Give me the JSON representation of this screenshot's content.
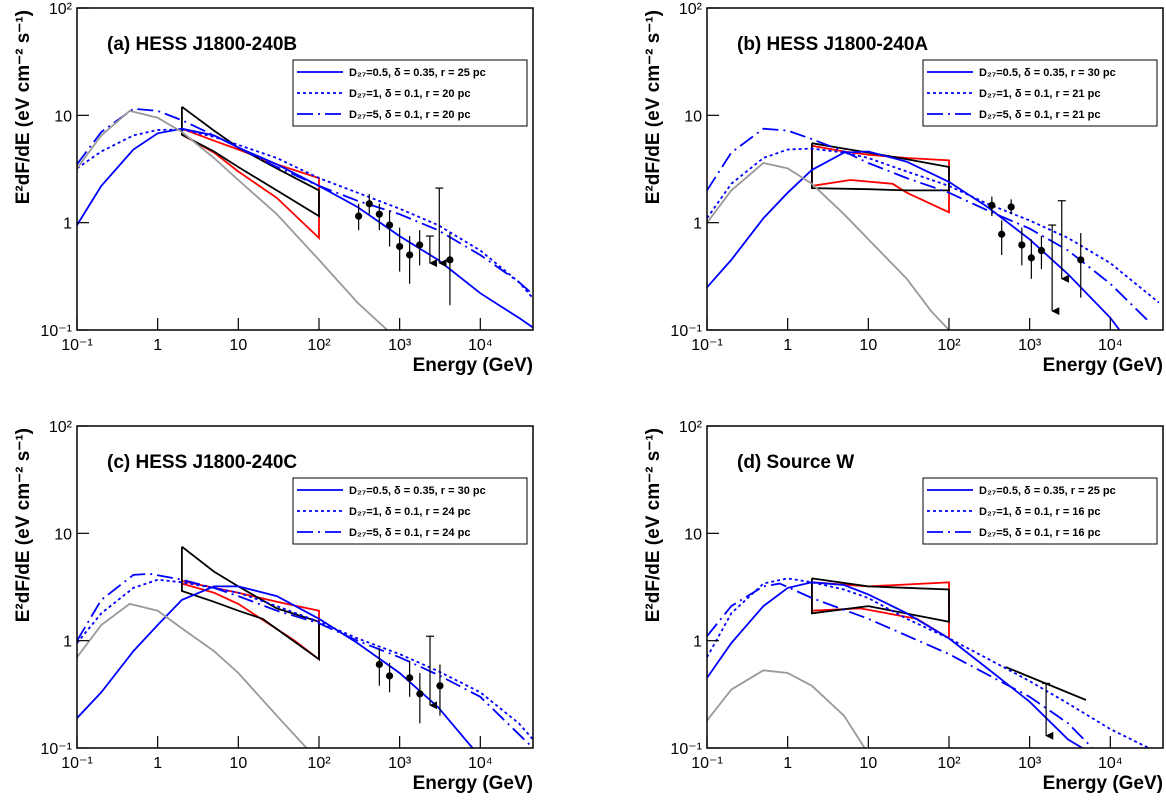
{
  "chart_data": [
    {
      "type": "line",
      "title": "(a) HESS J1800-240B",
      "xlabel": "Energy (GeV)",
      "ylabel": "E²dF/dE (eV cm⁻² s⁻¹)",
      "log_x": true,
      "log_y": true,
      "xlim": [
        0.1,
        45000
      ],
      "ylim": [
        0.1,
        100
      ],
      "xticks": [
        {
          "value": 0.1,
          "label": "10⁻¹"
        },
        1,
        10,
        {
          "value": 100,
          "label": "10²"
        },
        {
          "value": 1000,
          "label": "10³"
        },
        {
          "value": 10000,
          "label": "10⁴"
        }
      ],
      "yticks": [
        {
          "value": 0.1,
          "label": "10⁻¹"
        },
        1,
        10,
        {
          "value": 100,
          "label": "10²"
        }
      ],
      "legend": "upper right",
      "series": [
        {
          "name": "D₂₇=0.5, δ = 0.35, r = 25 pc",
          "color": "#0000ff",
          "style": "solid",
          "x": [
            0.1,
            0.2,
            0.5,
            1,
            2,
            5,
            10,
            30,
            100,
            300,
            1000,
            3000,
            10000,
            30000,
            50000
          ],
          "values": [
            0.95,
            2.2,
            4.8,
            6.8,
            7.5,
            6.5,
            5.0,
            3.5,
            2.2,
            1.4,
            0.75,
            0.45,
            0.22,
            0.13,
            0.1
          ]
        },
        {
          "name": "D₂₇=1, δ = 0.1, r = 20 pc",
          "color": "#0000ff",
          "style": "dotted",
          "x": [
            0.1,
            0.2,
            0.5,
            1,
            2,
            5,
            10,
            30,
            100,
            300,
            1000,
            3000,
            10000,
            30000,
            50000
          ],
          "values": [
            3.2,
            4.6,
            6.5,
            7.3,
            7.4,
            6.3,
            5.3,
            4.0,
            2.6,
            1.9,
            1.35,
            0.95,
            0.55,
            0.28,
            0.18
          ]
        },
        {
          "name": "D₂₇=5, δ = 0.1, r = 20 pc",
          "color": "#0000ff",
          "style": "dashdot",
          "x": [
            0.1,
            0.2,
            0.5,
            1,
            2,
            5,
            10,
            30,
            100,
            300,
            1000,
            3000,
            10000,
            30000,
            50000
          ],
          "values": [
            3.5,
            7,
            11.5,
            11,
            9,
            6.5,
            5.0,
            3.3,
            2.2,
            1.6,
            1.2,
            0.85,
            0.5,
            0.28,
            0.2
          ]
        },
        {
          "color": "#999999",
          "style": "solid",
          "x": [
            0.1,
            0.2,
            0.45,
            1,
            2,
            5,
            10,
            30,
            100,
            300,
            700
          ],
          "values": [
            3.2,
            6.5,
            11,
            9.5,
            7,
            4,
            2.5,
            1.2,
            0.45,
            0.18,
            0.1
          ]
        }
      ],
      "bowties": [
        {
          "color": "#ff0000",
          "x": [
            2,
            5,
            10,
            30,
            100,
            100,
            30,
            10,
            5,
            2,
            2
          ],
          "values": [
            7.5,
            5.8,
            4.8,
            3.5,
            2.6,
            0.72,
            1.7,
            3.0,
            4.5,
            6.6,
            7.5
          ]
        },
        {
          "color": "#000000",
          "x": [
            2,
            5,
            10,
            30,
            100,
            100,
            30,
            10,
            5,
            2,
            2
          ],
          "values": [
            12,
            7.2,
            5,
            3.2,
            2.0,
            1.15,
            2.0,
            3.3,
            4.6,
            6.6,
            12
          ]
        }
      ],
      "points": {
        "color": "#000000",
        "x": [
          310,
          420,
          560,
          750,
          1000,
          1330,
          1770,
          4200
        ],
        "values": [
          1.15,
          1.5,
          1.2,
          0.95,
          0.6,
          0.5,
          0.62,
          0.45
        ],
        "low": [
          0.85,
          1.2,
          0.85,
          0.6,
          0.35,
          0.27,
          0.4,
          0.17
        ],
        "high": [
          1.5,
          1.85,
          1.5,
          1.3,
          0.9,
          0.75,
          0.85,
          0.8
        ]
      },
      "upper_limits": {
        "x": [
          2370,
          3100
        ],
        "values": [
          0.75,
          2.1
        ],
        "tips": [
          0.42,
          0.42
        ]
      }
    },
    {
      "type": "line",
      "title": "(b) HESS J1800-240A",
      "xlabel": "Energy (GeV)",
      "ylabel": "E²dF/dE (eV cm⁻² s⁻¹)",
      "log_x": true,
      "log_y": true,
      "xlim": [
        0.1,
        45000
      ],
      "ylim": [
        0.1,
        100
      ],
      "xticks": [
        {
          "value": 0.1,
          "label": "10⁻¹"
        },
        1,
        10,
        {
          "value": 100,
          "label": "10²"
        },
        {
          "value": 1000,
          "label": "10³"
        },
        {
          "value": 10000,
          "label": "10⁴"
        }
      ],
      "yticks": [
        {
          "value": 0.1,
          "label": "10⁻¹"
        },
        1,
        10,
        {
          "value": 100,
          "label": "10²"
        }
      ],
      "legend": "upper right",
      "series": [
        {
          "name": "D₂₇=0.5, δ = 0.35, r = 30 pc",
          "color": "#0000ff",
          "style": "solid",
          "x": [
            0.1,
            0.2,
            0.5,
            1,
            2,
            5,
            10,
            30,
            100,
            300,
            1000,
            3000,
            10000,
            13000
          ],
          "values": [
            0.25,
            0.45,
            1.1,
            1.9,
            3.1,
            4.5,
            4.6,
            3.7,
            2.4,
            1.4,
            0.7,
            0.33,
            0.13,
            0.1
          ]
        },
        {
          "name": "D₂₇=1, δ = 0.1, r = 21 pc",
          "color": "#0000ff",
          "style": "dotted",
          "x": [
            0.1,
            0.2,
            0.5,
            1,
            2,
            5,
            10,
            30,
            100,
            300,
            1000,
            3000,
            10000,
            40000
          ],
          "values": [
            1.1,
            2.3,
            4.0,
            4.8,
            4.9,
            4.5,
            4.0,
            3.0,
            2.2,
            1.5,
            1.05,
            0.72,
            0.42,
            0.18
          ]
        },
        {
          "name": "D₂₇=5, δ = 0.1, r = 21 pc",
          "color": "#0000ff",
          "style": "dashdot",
          "x": [
            0.1,
            0.2,
            0.5,
            1,
            2,
            5,
            10,
            30,
            100,
            300,
            1000,
            3000,
            10000,
            30000
          ],
          "values": [
            2.0,
            4.5,
            7.5,
            7.2,
            6,
            4.6,
            3.6,
            2.6,
            1.9,
            1.3,
            0.88,
            0.55,
            0.27,
            0.12
          ]
        },
        {
          "color": "#999999",
          "style": "solid",
          "x": [
            0.1,
            0.2,
            0.5,
            1,
            2,
            5,
            10,
            30,
            60,
            100
          ],
          "values": [
            1.0,
            2.0,
            3.6,
            3.2,
            2.3,
            1.2,
            0.7,
            0.3,
            0.15,
            0.1
          ]
        }
      ],
      "bowties": [
        {
          "color": "#ff0000",
          "x": [
            2,
            5,
            10,
            30,
            100,
            100,
            30,
            20,
            6,
            2,
            2
          ],
          "values": [
            5.2,
            4.6,
            4.3,
            4.0,
            3.8,
            1.25,
            1.9,
            2.3,
            2.5,
            2.2,
            5.2
          ]
        },
        {
          "color": "#000000",
          "x": [
            2,
            5,
            10,
            30,
            100,
            100,
            30,
            10,
            2,
            2
          ],
          "values": [
            5.5,
            4.9,
            4.5,
            3.9,
            3.3,
            2.0,
            2.0,
            2.05,
            2.1,
            5.5
          ]
        }
      ],
      "points": {
        "color": "#000000",
        "x": [
          340,
          450,
          590,
          800,
          1050,
          1400,
          4300
        ],
        "values": [
          1.45,
          0.78,
          1.4,
          0.62,
          0.47,
          0.55,
          0.45
        ],
        "low": [
          1.15,
          0.5,
          1.2,
          0.4,
          0.3,
          0.37,
          0.2
        ],
        "high": [
          1.75,
          1.05,
          1.65,
          0.9,
          0.7,
          0.75,
          0.8
        ]
      },
      "upper_limits": {
        "x": [
          1900,
          2500
        ],
        "values": [
          0.95,
          1.6
        ],
        "tips": [
          0.15,
          0.3
        ]
      }
    },
    {
      "type": "line",
      "title": "(c) HESS J1800-240C",
      "xlabel": "Energy (GeV)",
      "ylabel": "E²dF/dE (eV cm⁻² s⁻¹)",
      "log_x": true,
      "log_y": true,
      "xlim": [
        0.1,
        45000
      ],
      "ylim": [
        0.1,
        100
      ],
      "xticks": [
        {
          "value": 0.1,
          "label": "10⁻¹"
        },
        1,
        10,
        {
          "value": 100,
          "label": "10²"
        },
        {
          "value": 1000,
          "label": "10³"
        },
        {
          "value": 10000,
          "label": "10⁴"
        }
      ],
      "yticks": [
        {
          "value": 0.1,
          "label": "10⁻¹"
        },
        1,
        10,
        {
          "value": 100,
          "label": "10²"
        }
      ],
      "legend": "upper right",
      "series": [
        {
          "name": "D₂₇=0.5, δ = 0.35, r = 30 pc",
          "color": "#0000ff",
          "style": "solid",
          "x": [
            0.1,
            0.2,
            0.5,
            1,
            2,
            5,
            10,
            30,
            100,
            300,
            1000,
            3000,
            8000
          ],
          "values": [
            0.19,
            0.33,
            0.8,
            1.4,
            2.4,
            3.2,
            3.2,
            2.6,
            1.6,
            0.95,
            0.5,
            0.24,
            0.1
          ]
        },
        {
          "name": "D₂₇=1, δ = 0.1, r = 24 pc",
          "color": "#0000ff",
          "style": "dotted",
          "x": [
            0.1,
            0.2,
            0.5,
            1,
            2,
            5,
            10,
            30,
            100,
            300,
            1000,
            3000,
            10000,
            30000,
            45000
          ],
          "values": [
            0.95,
            1.8,
            3.1,
            3.7,
            3.5,
            3.1,
            2.8,
            2.1,
            1.5,
            1.05,
            0.75,
            0.52,
            0.33,
            0.17,
            0.12
          ]
        },
        {
          "name": "D₂₇=5, δ = 0.1, r = 24 pc",
          "color": "#0000ff",
          "style": "dashdot",
          "x": [
            0.1,
            0.2,
            0.5,
            0.8,
            2,
            5,
            10,
            30,
            100,
            300,
            1000,
            3000,
            10000,
            45000
          ],
          "values": [
            1.0,
            2.4,
            4.1,
            4.2,
            3.7,
            3.1,
            2.6,
            1.9,
            1.45,
            1.0,
            0.7,
            0.48,
            0.3,
            0.1
          ]
        },
        {
          "color": "#999999",
          "style": "solid",
          "x": [
            0.1,
            0.2,
            0.45,
            1,
            2,
            5,
            10,
            30,
            70
          ],
          "values": [
            0.7,
            1.4,
            2.2,
            1.9,
            1.3,
            0.8,
            0.5,
            0.2,
            0.1
          ]
        }
      ],
      "bowties": [
        {
          "color": "#ff0000",
          "x": [
            2,
            5,
            10,
            30,
            100,
            100,
            50,
            10,
            5,
            2,
            2
          ],
          "values": [
            3.6,
            3.1,
            2.8,
            2.3,
            1.9,
            0.67,
            1.0,
            2.2,
            2.8,
            3.4,
            3.6
          ]
        },
        {
          "color": "#000000",
          "x": [
            2,
            5,
            10,
            30,
            100,
            100,
            20,
            10,
            5,
            2,
            2
          ],
          "values": [
            7.5,
            4.4,
            3.2,
            2.0,
            1.5,
            0.67,
            1.6,
            1.9,
            2.3,
            2.9,
            7.5
          ]
        }
      ],
      "points": {
        "color": "#000000",
        "x": [
          560,
          750,
          1330,
          1780,
          3160
        ],
        "values": [
          0.6,
          0.47,
          0.45,
          0.32,
          0.38
        ],
        "low": [
          0.38,
          0.33,
          0.3,
          0.17,
          0.2
        ],
        "high": [
          0.85,
          0.62,
          0.65,
          0.5,
          0.6
        ]
      },
      "upper_limits": {
        "x": [
          2380
        ],
        "values": [
          1.1
        ],
        "tips": [
          0.25
        ]
      }
    },
    {
      "type": "line",
      "title": "(d) Source W",
      "xlabel": "Energy (GeV)",
      "ylabel": "E²dF/dE (eV cm⁻² s⁻¹)",
      "log_x": true,
      "log_y": true,
      "xlim": [
        0.1,
        45000
      ],
      "ylim": [
        0.1,
        100
      ],
      "xticks": [
        {
          "value": 0.1,
          "label": "10⁻¹"
        },
        1,
        10,
        {
          "value": 100,
          "label": "10²"
        },
        {
          "value": 1000,
          "label": "10³"
        },
        {
          "value": 10000,
          "label": "10⁴"
        }
      ],
      "yticks": [
        {
          "value": 0.1,
          "label": "10⁻¹"
        },
        1,
        10,
        {
          "value": 100,
          "label": "10²"
        }
      ],
      "legend": "upper right",
      "series": [
        {
          "name": "D₂₇=0.5, δ = 0.35, r = 25 pc",
          "color": "#0000ff",
          "style": "solid",
          "x": [
            0.1,
            0.2,
            0.5,
            1,
            2,
            5,
            10,
            30,
            100,
            300,
            1000,
            3000,
            4500
          ],
          "values": [
            0.45,
            0.95,
            2.1,
            3.1,
            3.5,
            3.3,
            2.7,
            1.8,
            1.05,
            0.55,
            0.27,
            0.12,
            0.1
          ]
        },
        {
          "name": "D₂₇=1, δ = 0.1, r = 16 pc",
          "color": "#0000ff",
          "style": "dotted",
          "x": [
            0.1,
            0.2,
            0.5,
            1,
            2,
            5,
            10,
            30,
            100,
            300,
            1000,
            3000,
            10000,
            30000
          ],
          "values": [
            0.7,
            1.8,
            3.4,
            3.8,
            3.5,
            3.0,
            2.5,
            1.6,
            1.05,
            0.68,
            0.42,
            0.26,
            0.15,
            0.1
          ]
        },
        {
          "name": "D₂₇=5, δ = 0.1, r = 16 pc",
          "color": "#0000ff",
          "style": "dashdot",
          "x": [
            0.1,
            0.2,
            0.5,
            0.8,
            2,
            10,
            100,
            1000,
            3000,
            6000
          ],
          "values": [
            1.1,
            2.1,
            3.2,
            3.4,
            2.5,
            1.6,
            0.75,
            0.3,
            0.17,
            0.1
          ]
        },
        {
          "color": "#999999",
          "style": "solid",
          "x": [
            0.1,
            0.2,
            0.5,
            1,
            2,
            5,
            9
          ],
          "values": [
            0.18,
            0.35,
            0.53,
            0.5,
            0.38,
            0.2,
            0.1
          ]
        }
      ],
      "bowties": [
        {
          "color": "#ff0000",
          "x": [
            2,
            10,
            100,
            100,
            40,
            8,
            2,
            2
          ],
          "values": [
            3.5,
            3.2,
            3.5,
            1.05,
            1.6,
            2.0,
            1.9,
            3.5
          ]
        },
        {
          "color": "#000000",
          "x": [
            2,
            10,
            100,
            100,
            10,
            2,
            2
          ],
          "values": [
            3.8,
            3.2,
            3.0,
            1.5,
            2.1,
            1.8,
            3.8
          ]
        },
        {
          "color": "#000000",
          "x": [
            500,
            5000
          ],
          "values": [
            0.57,
            0.28
          ]
        }
      ],
      "upper_limits": {
        "x": [
          1600
        ],
        "values": [
          0.4
        ],
        "tips": [
          0.13
        ]
      }
    }
  ]
}
